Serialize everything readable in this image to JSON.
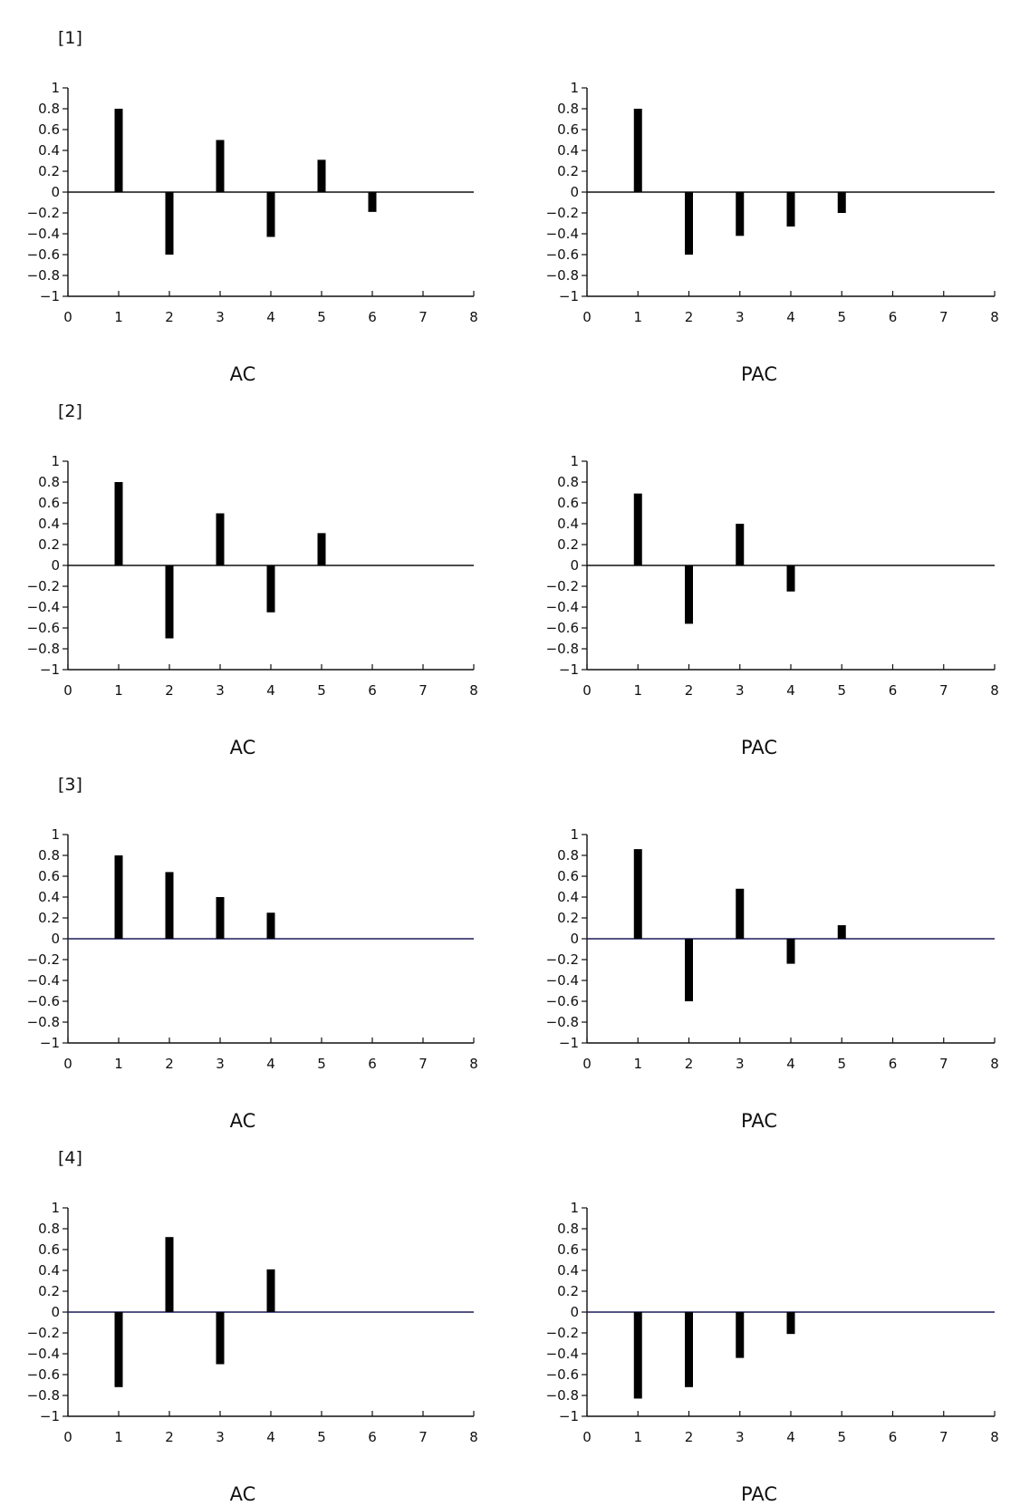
{
  "chart_data": [
    {
      "type": "bar",
      "panel": "[1]",
      "title": "",
      "charts": [
        {
          "xlabel": "AC",
          "x": [
            1,
            2,
            3,
            4,
            5,
            6
          ],
          "values": [
            0.8,
            -0.6,
            0.5,
            -0.43,
            0.31,
            -0.19
          ],
          "xlim": [
            0,
            8
          ],
          "ylim": [
            -1,
            1
          ],
          "xticks": [
            "0",
            "1",
            "2",
            "3",
            "4",
            "5",
            "6",
            "7",
            "8"
          ],
          "yticks": [
            "1",
            "0.8",
            "0.6",
            "0.4",
            "0.2",
            "0",
            "−0.2",
            "−0.4",
            "−0.6",
            "−0.8",
            "−1"
          ]
        },
        {
          "xlabel": "PAC",
          "x": [
            1,
            2,
            3,
            4,
            5
          ],
          "values": [
            0.8,
            -0.6,
            -0.42,
            -0.33,
            -0.2
          ],
          "xlim": [
            0,
            8
          ],
          "ylim": [
            -1,
            1
          ],
          "xticks": [
            "0",
            "1",
            "2",
            "3",
            "4",
            "5",
            "6",
            "7",
            "8"
          ],
          "yticks": [
            "1",
            "0.8",
            "0.6",
            "0.4",
            "0.2",
            "0",
            "−0.2",
            "−0.4",
            "−0.6",
            "−0.8",
            "−1"
          ]
        }
      ]
    },
    {
      "type": "bar",
      "panel": "[2]",
      "title": "",
      "charts": [
        {
          "xlabel": "AC",
          "x": [
            1,
            2,
            3,
            4,
            5
          ],
          "values": [
            0.8,
            -0.7,
            0.5,
            -0.45,
            0.31
          ],
          "xlim": [
            0,
            8
          ],
          "ylim": [
            -1,
            1
          ],
          "xticks": [
            "0",
            "1",
            "2",
            "3",
            "4",
            "5",
            "6",
            "7",
            "8"
          ],
          "yticks": [
            "1",
            "0.8",
            "0.6",
            "0.4",
            "0.2",
            "0",
            "−0.2",
            "−0.4",
            "−0.6",
            "−0.8",
            "−1"
          ]
        },
        {
          "xlabel": "PAC",
          "x": [
            1,
            2,
            3,
            4
          ],
          "values": [
            0.69,
            -0.56,
            0.4,
            -0.25
          ],
          "xlim": [
            0,
            8
          ],
          "ylim": [
            -1,
            1
          ],
          "xticks": [
            "0",
            "1",
            "2",
            "3",
            "4",
            "5",
            "6",
            "7",
            "8"
          ],
          "yticks": [
            "1",
            "0.8",
            "0.6",
            "0.4",
            "0.2",
            "0",
            "−0.2",
            "−0.4",
            "−0.6",
            "−0.8",
            "−1"
          ]
        }
      ]
    },
    {
      "type": "bar",
      "panel": "[3]",
      "title": "",
      "charts": [
        {
          "xlabel": "AC",
          "x": [
            1,
            2,
            3,
            4
          ],
          "values": [
            0.8,
            0.64,
            0.4,
            0.25
          ],
          "xlim": [
            0,
            8
          ],
          "ylim": [
            -1,
            1
          ],
          "xticks": [
            "0",
            "1",
            "2",
            "3",
            "4",
            "5",
            "6",
            "7",
            "8"
          ],
          "yticks": [
            "1",
            "0.8",
            "0.6",
            "0.4",
            "0.2",
            "0",
            "−0.2",
            "−0.4",
            "−0.6",
            "−0.8",
            "−1"
          ]
        },
        {
          "xlabel": "PAC",
          "x": [
            1,
            2,
            3,
            4,
            5
          ],
          "values": [
            0.86,
            -0.6,
            0.48,
            -0.24,
            0.13
          ],
          "xlim": [
            0,
            8
          ],
          "ylim": [
            -1,
            1
          ],
          "xticks": [
            "0",
            "1",
            "2",
            "3",
            "4",
            "5",
            "6",
            "7",
            "8"
          ],
          "yticks": [
            "1",
            "0.8",
            "0.6",
            "0.4",
            "0.2",
            "0",
            "−0.2",
            "−0.4",
            "−0.6",
            "−0.8",
            "−1"
          ]
        }
      ]
    },
    {
      "type": "bar",
      "panel": "[4]",
      "title": "",
      "charts": [
        {
          "xlabel": "AC",
          "x": [
            1,
            2,
            3,
            4
          ],
          "values": [
            -0.72,
            0.72,
            -0.5,
            0.41
          ],
          "xlim": [
            0,
            8
          ],
          "ylim": [
            -1,
            1
          ],
          "xticks": [
            "0",
            "1",
            "2",
            "3",
            "4",
            "5",
            "6",
            "7",
            "8"
          ],
          "yticks": [
            "1",
            "0.8",
            "0.6",
            "0.4",
            "0.2",
            "0",
            "−0.2",
            "−0.4",
            "−0.6",
            "−0.8",
            "−1"
          ]
        },
        {
          "xlabel": "PAC",
          "x": [
            1,
            2,
            3,
            4
          ],
          "values": [
            -0.83,
            -0.72,
            -0.44,
            -0.21
          ],
          "xlim": [
            0,
            8
          ],
          "ylim": [
            -1,
            1
          ],
          "xticks": [
            "0",
            "1",
            "2",
            "3",
            "4",
            "5",
            "6",
            "7",
            "8"
          ],
          "yticks": [
            "1",
            "0.8",
            "0.6",
            "0.4",
            "0.2",
            "0",
            "−0.2",
            "−0.4",
            "−0.6",
            "−0.8",
            "−1"
          ]
        }
      ]
    }
  ]
}
